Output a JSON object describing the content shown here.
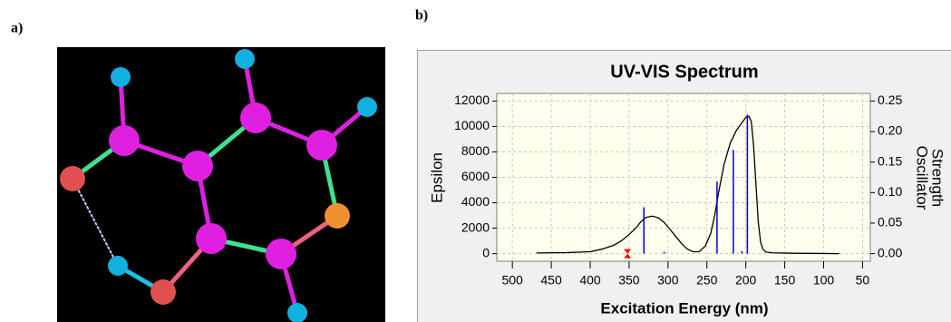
{
  "panels": {
    "a": "a)",
    "b": "b)"
  },
  "chart_data": {
    "type": "spectrum",
    "title": "UV-VIS Spectrum",
    "xlabel": "Excitation Energy (nm)",
    "ylabel": "Epsilon",
    "y2label_lines": [
      "Oscillator",
      "Strength"
    ],
    "xlim": [
      520,
      40
    ],
    "xticks": [
      500,
      450,
      400,
      350,
      300,
      250,
      200,
      150,
      100,
      50
    ],
    "ylim": [
      -600,
      12600
    ],
    "yticks": [
      0,
      2000,
      4000,
      6000,
      8000,
      10000,
      12000
    ],
    "y2lim": [
      -0.0125,
      0.2625
    ],
    "y2ticks": [
      {
        "value": 0,
        "label": "0.00"
      },
      0.05,
      {
        "value": 0.1,
        "label": "0.10"
      },
      0.15,
      {
        "value": 0.2,
        "label": "0.20"
      },
      0.25
    ],
    "grid": true,
    "series": [
      {
        "type": "line",
        "color": "#000000",
        "x": [
          469,
          430,
          400,
          385,
          370,
          360,
          350,
          340,
          335,
          328,
          320,
          312,
          305,
          298,
          290,
          282,
          275,
          268,
          260,
          252,
          245,
          240,
          235,
          228,
          220,
          212,
          205,
          200,
          196,
          193,
          190,
          187,
          184,
          181,
          178,
          174,
          165,
          140,
          100,
          80
        ],
        "values": [
          50,
          80,
          150,
          350,
          650,
          1000,
          1500,
          2100,
          2500,
          2850,
          2950,
          2800,
          2450,
          1950,
          1350,
          750,
          350,
          150,
          150,
          600,
          1600,
          3000,
          4800,
          7000,
          8700,
          9700,
          10300,
          10700,
          10800,
          10400,
          8500,
          5500,
          2500,
          900,
          350,
          120,
          60,
          30,
          10,
          0
        ]
      },
      {
        "type": "stick",
        "axis": "y2",
        "color": "#0000dd",
        "x": [
          331,
          305,
          237,
          216,
          205,
          198
        ],
        "values": [
          0.076,
          0.003,
          0.118,
          0.17,
          0.004,
          0.228
        ]
      }
    ],
    "marker": {
      "x": 352,
      "y": 0,
      "color": "#ff0000"
    }
  }
}
